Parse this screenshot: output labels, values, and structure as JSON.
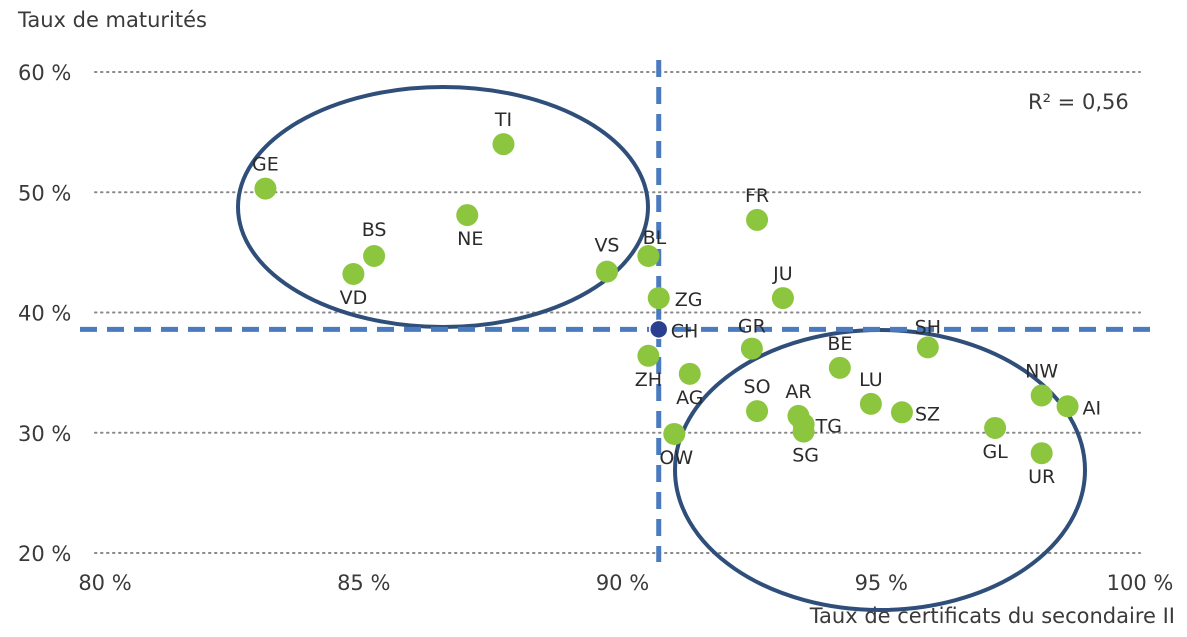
{
  "chart_data": {
    "type": "scatter",
    "ylabel": "Taux de maturités",
    "xlabel": "Taux de certificats du secondaire II",
    "annotation": "R² = 0,56",
    "xlim": [
      80,
      100
    ],
    "ylim": [
      20,
      60
    ],
    "xticks": [
      "80 %",
      "85 %",
      "90 %",
      "95 %",
      "100 %"
    ],
    "yticks": [
      "20 %",
      "30 %",
      "40 %",
      "50 %",
      "60 %"
    ],
    "ytick_values": [
      20,
      30,
      40,
      50,
      60
    ],
    "xtick_values": [
      80,
      85,
      90,
      95,
      100
    ],
    "grid": "horizontal dotted",
    "reference_lines": {
      "x": 90.7,
      "y": 38.6
    },
    "point_color": "#8cc63f",
    "reference_point_color": "#2a3f8f",
    "line_color": "#4a7bbf",
    "ellipse_color": "#2f4f7a",
    "points": [
      {
        "label": "GE",
        "x": 83.1,
        "y": 50.3
      },
      {
        "label": "TI",
        "x": 87.7,
        "y": 54.0
      },
      {
        "label": "NE",
        "x": 87.0,
        "y": 48.1
      },
      {
        "label": "BS",
        "x": 85.2,
        "y": 44.7
      },
      {
        "label": "VD",
        "x": 84.8,
        "y": 43.2
      },
      {
        "label": "VS",
        "x": 89.7,
        "y": 43.4
      },
      {
        "label": "BL",
        "x": 90.5,
        "y": 44.7
      },
      {
        "label": "ZG",
        "x": 90.7,
        "y": 41.2
      },
      {
        "label": "CH",
        "x": 90.7,
        "y": 38.6,
        "reference": true
      },
      {
        "label": "ZH",
        "x": 90.5,
        "y": 36.4
      },
      {
        "label": "AG",
        "x": 91.3,
        "y": 34.9
      },
      {
        "label": "OW",
        "x": 91.0,
        "y": 29.9
      },
      {
        "label": "FR",
        "x": 92.6,
        "y": 47.7
      },
      {
        "label": "JU",
        "x": 93.1,
        "y": 41.2
      },
      {
        "label": "GR",
        "x": 92.5,
        "y": 37.0
      },
      {
        "label": "SO",
        "x": 92.6,
        "y": 31.8
      },
      {
        "label": "AR",
        "x": 93.4,
        "y": 31.4
      },
      {
        "label": "TG",
        "x": 93.5,
        "y": 30.7
      },
      {
        "label": "SG",
        "x": 93.5,
        "y": 30.1
      },
      {
        "label": "BE",
        "x": 94.2,
        "y": 35.4
      },
      {
        "label": "LU",
        "x": 94.8,
        "y": 32.4
      },
      {
        "label": "SZ",
        "x": 95.4,
        "y": 31.7
      },
      {
        "label": "SH",
        "x": 95.9,
        "y": 37.1
      },
      {
        "label": "GL",
        "x": 97.2,
        "y": 30.4
      },
      {
        "label": "NW",
        "x": 98.1,
        "y": 33.1
      },
      {
        "label": "UR",
        "x": 98.1,
        "y": 28.3
      },
      {
        "label": "AI",
        "x": 98.6,
        "y": 32.2
      }
    ]
  }
}
